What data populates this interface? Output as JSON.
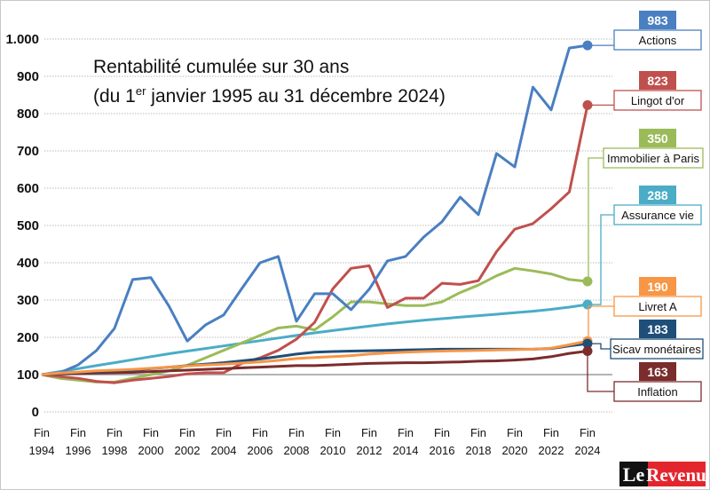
{
  "chart_data": {
    "type": "line",
    "title_line1": "Rentabilité cumulée sur 30 ans",
    "title_line2_pre": "(du 1",
    "title_line2_sup": "er",
    "title_line2_post": " janvier 1995 au 31 décembre 2024)",
    "xlabel": "",
    "ylabel": "",
    "ylim": [
      0,
      1000
    ],
    "yticks": [
      0,
      100,
      200,
      300,
      400,
      500,
      600,
      700,
      800,
      900,
      1000
    ],
    "ytick_labels": [
      "0",
      "100",
      "200",
      "300",
      "400",
      "500",
      "600",
      "700",
      "800",
      "900",
      "1.000"
    ],
    "xtick_labels": [
      [
        "Fin",
        "1994"
      ],
      [
        "Fin",
        "1996"
      ],
      [
        "Fin",
        "1998"
      ],
      [
        "Fin",
        "2000"
      ],
      [
        "Fin",
        "2002"
      ],
      [
        "Fin",
        "2004"
      ],
      [
        "Fin",
        "2006"
      ],
      [
        "Fin",
        "2008"
      ],
      [
        "Fin",
        "2010"
      ],
      [
        "Fin",
        "2012"
      ],
      [
        "Fin",
        "2014"
      ],
      [
        "Fin",
        "2016"
      ],
      [
        "Fin",
        "2018"
      ],
      [
        "Fin",
        "2020"
      ],
      [
        "Fin",
        "2022"
      ],
      [
        "Fin",
        "2024"
      ]
    ],
    "x": [
      1994,
      1995,
      1996,
      1997,
      1998,
      1999,
      2000,
      2001,
      2002,
      2003,
      2004,
      2005,
      2006,
      2007,
      2008,
      2009,
      2010,
      2011,
      2012,
      2013,
      2014,
      2015,
      2016,
      2017,
      2018,
      2019,
      2020,
      2021,
      2022,
      2023,
      2024
    ],
    "grid": true,
    "legend": "right, end-of-line labels",
    "series": [
      {
        "name": "Actions",
        "final": "983",
        "color": "#4a7fc1",
        "values": [
          100,
          105,
          126,
          164,
          224,
          355,
          360,
          283,
          190,
          233,
          260,
          331,
          400,
          417,
          243,
          317,
          317,
          274,
          329,
          405,
          417,
          469,
          510,
          576,
          529,
          693,
          657,
          871,
          810,
          976,
          983
        ]
      },
      {
        "name": "Lingot d'or",
        "final": "823",
        "color": "#c0504d",
        "values": [
          100,
          95,
          90,
          82,
          78,
          85,
          90,
          95,
          102,
          105,
          105,
          130,
          145,
          165,
          195,
          240,
          330,
          385,
          392,
          280,
          305,
          305,
          345,
          342,
          352,
          430,
          490,
          505,
          545,
          590,
          823
        ]
      },
      {
        "name": "Immobilier à Paris",
        "final": "350",
        "color": "#9bbb59",
        "values": [
          100,
          90,
          85,
          80,
          80,
          90,
          100,
          110,
          125,
          145,
          165,
          185,
          205,
          225,
          230,
          220,
          255,
          295,
          295,
          290,
          285,
          285,
          295,
          320,
          340,
          365,
          385,
          378,
          370,
          355,
          350
        ]
      },
      {
        "name": "Assurance vie",
        "final": "288",
        "color": "#4bacc6",
        "values": [
          100,
          108,
          116,
          124,
          132,
          140,
          148,
          156,
          163,
          170,
          177,
          184,
          191,
          198,
          205,
          212,
          218,
          224,
          230,
          236,
          241,
          246,
          250,
          254,
          258,
          262,
          266,
          270,
          275,
          281,
          288
        ]
      },
      {
        "name": "Livret A",
        "final": "190",
        "color": "#f79646",
        "values": [
          100,
          104,
          107,
          110,
          112,
          114,
          117,
          120,
          123,
          126,
          128,
          131,
          134,
          138,
          143,
          146,
          148,
          151,
          155,
          158,
          160,
          162,
          163,
          164,
          165,
          166,
          167,
          168,
          171,
          180,
          190
        ]
      },
      {
        "name": "Sicav monétaires",
        "final": "183",
        "color": "#1f4e79",
        "values": [
          100,
          103,
          106,
          108,
          110,
          112,
          116,
          120,
          124,
          128,
          132,
          137,
          142,
          148,
          155,
          160,
          162,
          163,
          164,
          165,
          166,
          167,
          168,
          168,
          168,
          168,
          168,
          168,
          170,
          177,
          183
        ]
      },
      {
        "name": "Inflation",
        "final": "163",
        "color": "#7b2c2c",
        "values": [
          100,
          102,
          103,
          104,
          105,
          106,
          108,
          110,
          112,
          114,
          116,
          118,
          120,
          122,
          124,
          124,
          126,
          128,
          130,
          131,
          132,
          132,
          133,
          134,
          136,
          137,
          139,
          142,
          148,
          157,
          163
        ]
      }
    ]
  },
  "logo": {
    "part1": "Le",
    "part2": "Revenu",
    "color1": "#111111",
    "color2": "#e3262e"
  }
}
